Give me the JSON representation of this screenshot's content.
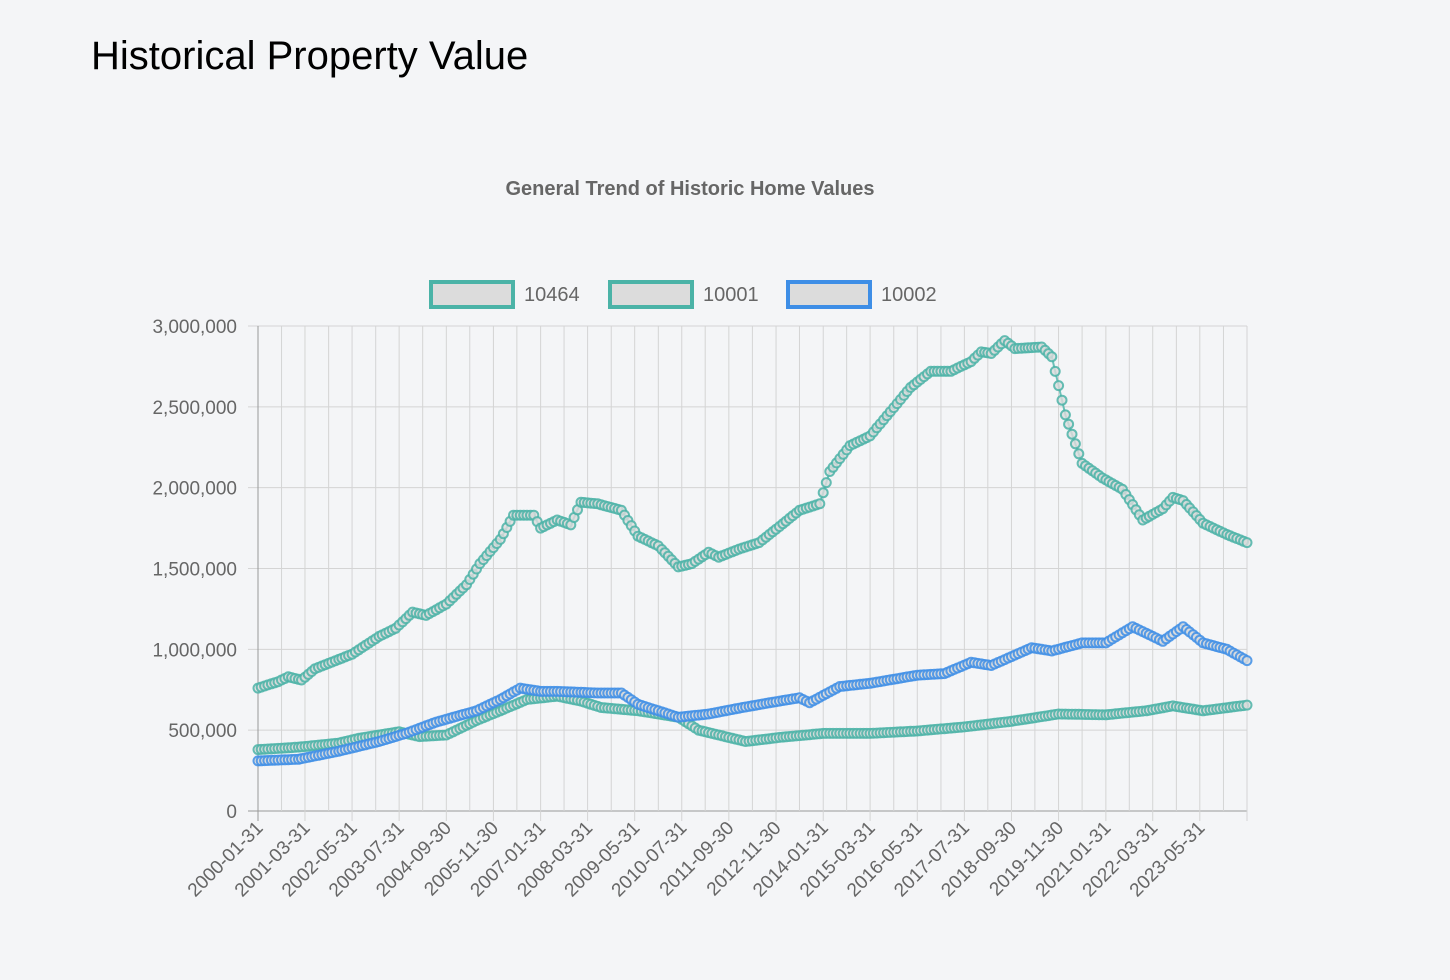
{
  "page": {
    "title": "Historical Property Value"
  },
  "chart_data": {
    "type": "line",
    "title": "General Trend of Historic Home Values",
    "xlabel": "",
    "ylabel": "",
    "ylim": [
      0,
      3000000
    ],
    "yticks": [
      0,
      500000,
      1000000,
      1500000,
      2000000,
      2500000,
      3000000
    ],
    "ytick_labels": [
      "0",
      "500,000",
      "1,000,000",
      "1,500,000",
      "2,000,000",
      "2,500,000",
      "3,000,000"
    ],
    "xtick_labels": [
      "2000-01-31",
      "2001-03-31",
      "2002-05-31",
      "2003-07-31",
      "2004-09-30",
      "2005-11-30",
      "2007-01-31",
      "2008-03-31",
      "2009-05-31",
      "2010-07-31",
      "2011-09-30",
      "2012-11-30",
      "2014-01-31",
      "2015-03-31",
      "2016-05-31",
      "2017-07-31",
      "2018-09-30",
      "2019-11-30",
      "2021-01-31",
      "2022-03-31",
      "2023-05-31"
    ],
    "x_start": "2000-01-31",
    "x_end": "2024-07-31",
    "grid": true,
    "legend_position": "top",
    "series": [
      {
        "name": "10464",
        "color": "#4bb3a7",
        "points": [
          [
            "2000-01-31",
            380000
          ],
          [
            "2001-01-31",
            395000
          ],
          [
            "2002-01-31",
            420000
          ],
          [
            "2002-07-31",
            450000
          ],
          [
            "2003-07-31",
            490000
          ],
          [
            "2004-01-31",
            460000
          ],
          [
            "2004-09-30",
            470000
          ],
          [
            "2005-06-30",
            560000
          ],
          [
            "2006-01-31",
            620000
          ],
          [
            "2006-09-30",
            690000
          ],
          [
            "2007-06-30",
            710000
          ],
          [
            "2008-01-31",
            680000
          ],
          [
            "2008-07-31",
            640000
          ],
          [
            "2009-06-30",
            620000
          ],
          [
            "2010-06-30",
            580000
          ],
          [
            "2010-12-31",
            500000
          ],
          [
            "2011-06-30",
            470000
          ],
          [
            "2012-02-29",
            430000
          ],
          [
            "2012-12-31",
            455000
          ],
          [
            "2014-01-31",
            480000
          ],
          [
            "2015-03-31",
            480000
          ],
          [
            "2016-05-31",
            495000
          ],
          [
            "2017-07-31",
            520000
          ],
          [
            "2018-09-30",
            555000
          ],
          [
            "2019-11-30",
            600000
          ],
          [
            "2021-01-31",
            595000
          ],
          [
            "2022-01-31",
            620000
          ],
          [
            "2022-09-30",
            650000
          ],
          [
            "2023-06-30",
            620000
          ],
          [
            "2024-07-31",
            655000
          ]
        ]
      },
      {
        "name": "10001",
        "color": "#4bb3a7",
        "points": [
          [
            "2000-01-31",
            760000
          ],
          [
            "2000-07-31",
            800000
          ],
          [
            "2000-10-31",
            830000
          ],
          [
            "2001-02-28",
            810000
          ],
          [
            "2001-06-30",
            880000
          ],
          [
            "2002-05-31",
            970000
          ],
          [
            "2003-01-31",
            1080000
          ],
          [
            "2003-06-30",
            1130000
          ],
          [
            "2003-11-30",
            1230000
          ],
          [
            "2004-03-31",
            1210000
          ],
          [
            "2004-09-30",
            1280000
          ],
          [
            "2005-03-31",
            1400000
          ],
          [
            "2005-07-31",
            1530000
          ],
          [
            "2006-01-31",
            1680000
          ],
          [
            "2006-05-31",
            1830000
          ],
          [
            "2006-11-30",
            1830000
          ],
          [
            "2007-01-31",
            1750000
          ],
          [
            "2007-06-30",
            1800000
          ],
          [
            "2007-10-31",
            1770000
          ],
          [
            "2008-01-31",
            1910000
          ],
          [
            "2008-06-30",
            1900000
          ],
          [
            "2009-01-31",
            1860000
          ],
          [
            "2009-06-30",
            1700000
          ],
          [
            "2009-12-31",
            1640000
          ],
          [
            "2010-06-30",
            1510000
          ],
          [
            "2010-10-31",
            1530000
          ],
          [
            "2011-03-31",
            1600000
          ],
          [
            "2011-06-30",
            1570000
          ],
          [
            "2011-12-31",
            1620000
          ],
          [
            "2012-06-30",
            1660000
          ],
          [
            "2012-12-31",
            1760000
          ],
          [
            "2013-06-30",
            1860000
          ],
          [
            "2013-12-31",
            1900000
          ],
          [
            "2014-03-31",
            2100000
          ],
          [
            "2014-09-30",
            2260000
          ],
          [
            "2015-03-31",
            2320000
          ],
          [
            "2015-09-30",
            2470000
          ],
          [
            "2016-03-31",
            2620000
          ],
          [
            "2016-09-30",
            2720000
          ],
          [
            "2017-03-31",
            2720000
          ],
          [
            "2017-09-30",
            2780000
          ],
          [
            "2017-12-31",
            2840000
          ],
          [
            "2018-03-31",
            2830000
          ],
          [
            "2018-07-31",
            2910000
          ],
          [
            "2018-10-31",
            2860000
          ],
          [
            "2019-06-30",
            2870000
          ],
          [
            "2019-09-30",
            2810000
          ],
          [
            "2020-01-31",
            2450000
          ],
          [
            "2020-06-30",
            2150000
          ],
          [
            "2020-12-31",
            2060000
          ],
          [
            "2021-06-30",
            1990000
          ],
          [
            "2021-12-31",
            1800000
          ],
          [
            "2022-06-30",
            1870000
          ],
          [
            "2022-09-30",
            1940000
          ],
          [
            "2022-12-31",
            1920000
          ],
          [
            "2023-06-30",
            1780000
          ],
          [
            "2024-01-31",
            1710000
          ],
          [
            "2024-07-31",
            1660000
          ]
        ]
      },
      {
        "name": "10002",
        "color": "#3e8ee6",
        "points": [
          [
            "2000-01-31",
            310000
          ],
          [
            "2001-01-31",
            320000
          ],
          [
            "2002-01-31",
            370000
          ],
          [
            "2003-01-31",
            430000
          ],
          [
            "2003-09-30",
            480000
          ],
          [
            "2004-06-30",
            550000
          ],
          [
            "2005-06-30",
            620000
          ],
          [
            "2006-01-31",
            690000
          ],
          [
            "2006-07-31",
            760000
          ],
          [
            "2007-01-31",
            740000
          ],
          [
            "2007-06-30",
            740000
          ],
          [
            "2008-06-30",
            730000
          ],
          [
            "2009-01-31",
            730000
          ],
          [
            "2009-06-30",
            660000
          ],
          [
            "2010-06-30",
            580000
          ],
          [
            "2011-03-31",
            600000
          ],
          [
            "2012-01-31",
            640000
          ],
          [
            "2012-12-31",
            680000
          ],
          [
            "2013-06-30",
            700000
          ],
          [
            "2013-09-30",
            670000
          ],
          [
            "2014-06-30",
            770000
          ],
          [
            "2015-03-31",
            790000
          ],
          [
            "2016-05-31",
            840000
          ],
          [
            "2017-01-31",
            850000
          ],
          [
            "2017-09-30",
            920000
          ],
          [
            "2018-03-31",
            900000
          ],
          [
            "2019-03-31",
            1010000
          ],
          [
            "2019-09-30",
            990000
          ],
          [
            "2020-06-30",
            1040000
          ],
          [
            "2021-01-31",
            1040000
          ],
          [
            "2021-09-30",
            1140000
          ],
          [
            "2022-06-30",
            1050000
          ],
          [
            "2022-12-31",
            1140000
          ],
          [
            "2023-06-30",
            1040000
          ],
          [
            "2024-01-31",
            1000000
          ],
          [
            "2024-07-31",
            930000
          ]
        ]
      }
    ]
  }
}
